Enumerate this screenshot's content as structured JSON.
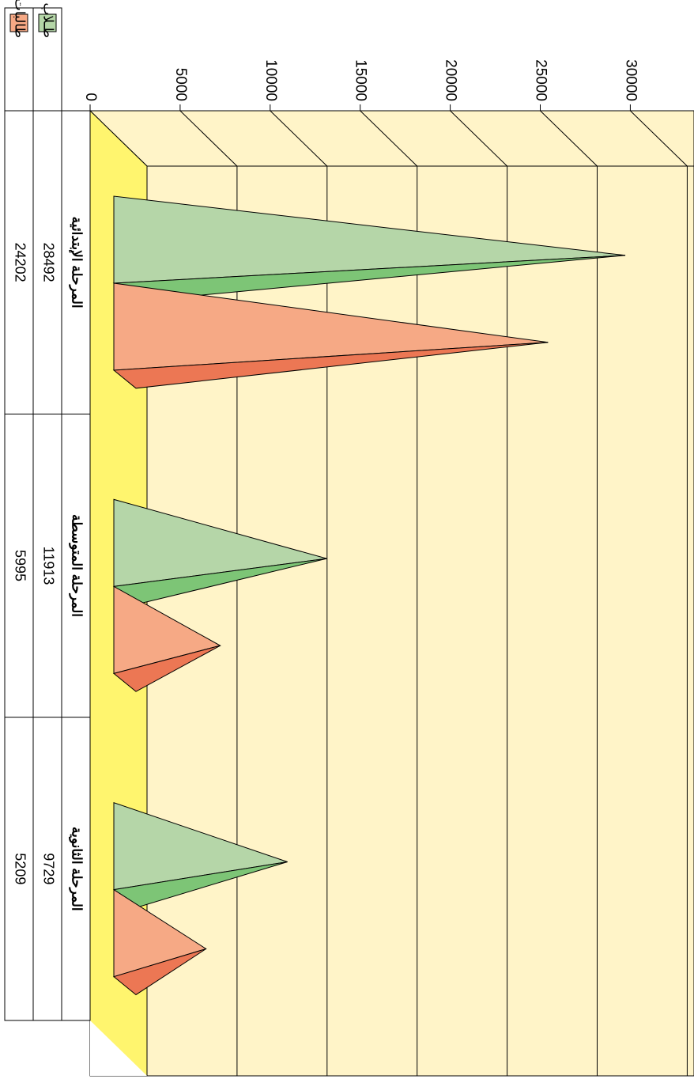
{
  "chart_data": {
    "type": "bar",
    "subtype": "3d-pyramid-clustered",
    "orientation": "rotated-90-clockwise",
    "title": "",
    "xlabel": "",
    "ylabel": "",
    "categories": [
      "المرحلة الإبتدائية",
      "المرحلة المتوسطة",
      "المرحلة الثانوية"
    ],
    "series": [
      {
        "name": "طـلاب",
        "values": [
          28492,
          11913,
          9729
        ]
      },
      {
        "name": "طالبات",
        "values": [
          24202,
          5995,
          5209
        ]
      }
    ],
    "ylim": [
      0,
      30000
    ],
    "yticks": [
      0,
      5000,
      10000,
      15000,
      20000,
      25000,
      30000
    ],
    "grid": true,
    "data_table": true,
    "legend_placement": "in-data-table"
  },
  "colors": {
    "wall": "#FFF4C8",
    "floor": "#FFF56E",
    "series_light": [
      "#B5D6A8",
      "#F6A985"
    ],
    "series_dark": [
      "#7DC576",
      "#EC7754"
    ]
  }
}
